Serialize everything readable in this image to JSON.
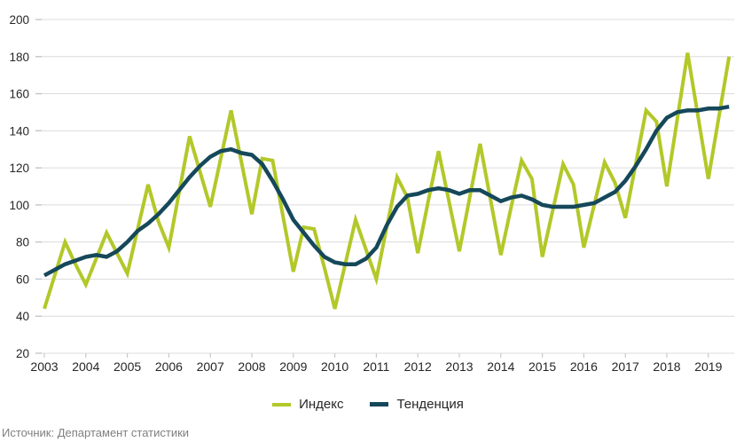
{
  "chart_data": {
    "type": "line",
    "title": "",
    "x_years": [
      2003,
      2004,
      2005,
      2006,
      2007,
      2008,
      2009,
      2010,
      2011,
      2012,
      2013,
      2014,
      2015,
      2016,
      2017,
      2018,
      2019
    ],
    "x_start_year": 2003,
    "x_step_years": 0.25,
    "frequency": "quarterly",
    "ylim": [
      20,
      200
    ],
    "y_ticks": [
      20,
      40,
      60,
      80,
      100,
      120,
      140,
      160,
      180,
      200
    ],
    "grid": "horizontal",
    "legend_position": "bottom-center",
    "series": [
      {
        "name": "Индекс",
        "color": "#b3c829",
        "stroke_width": 4,
        "values": [
          44,
          62,
          80,
          68,
          57,
          71,
          85,
          74,
          63,
          87,
          111,
          91,
          77,
          107,
          137,
          118,
          99,
          125,
          151,
          123,
          95,
          125,
          124,
          94,
          64,
          88,
          87,
          66,
          44,
          68,
          92,
          76,
          60,
          88,
          115,
          104,
          74,
          102,
          129,
          102,
          75,
          104,
          133,
          103,
          73,
          99,
          124,
          114,
          72,
          97,
          122,
          111,
          77,
          100,
          123,
          112,
          93,
          122,
          151,
          145,
          110,
          146,
          182,
          148,
          114,
          147,
          180
        ]
      },
      {
        "name": "Тенденция",
        "color": "#15485a",
        "stroke_width": 4.5,
        "values": [
          62,
          65,
          68,
          70,
          72,
          73,
          72,
          75,
          80,
          86,
          90,
          95,
          101,
          108,
          115,
          121,
          126,
          129,
          130,
          128,
          127,
          122,
          113,
          103,
          92,
          85,
          78,
          72,
          69,
          68,
          68,
          71,
          77,
          89,
          99,
          105,
          106,
          108,
          109,
          108,
          106,
          108,
          108,
          105,
          102,
          104,
          105,
          103,
          100,
          99,
          99,
          99,
          100,
          101,
          104,
          107,
          113,
          121,
          130,
          140,
          147,
          150,
          151,
          151,
          152,
          152,
          153
        ]
      }
    ]
  },
  "colors": {
    "background": "#ffffff",
    "gridline": "#dcdcdc",
    "axis_tick": "#c9c9c9",
    "axis_text": "#262626",
    "source_text": "#7f7f7f"
  },
  "footer": {
    "source_text": "Источник: Департамент статистики"
  }
}
